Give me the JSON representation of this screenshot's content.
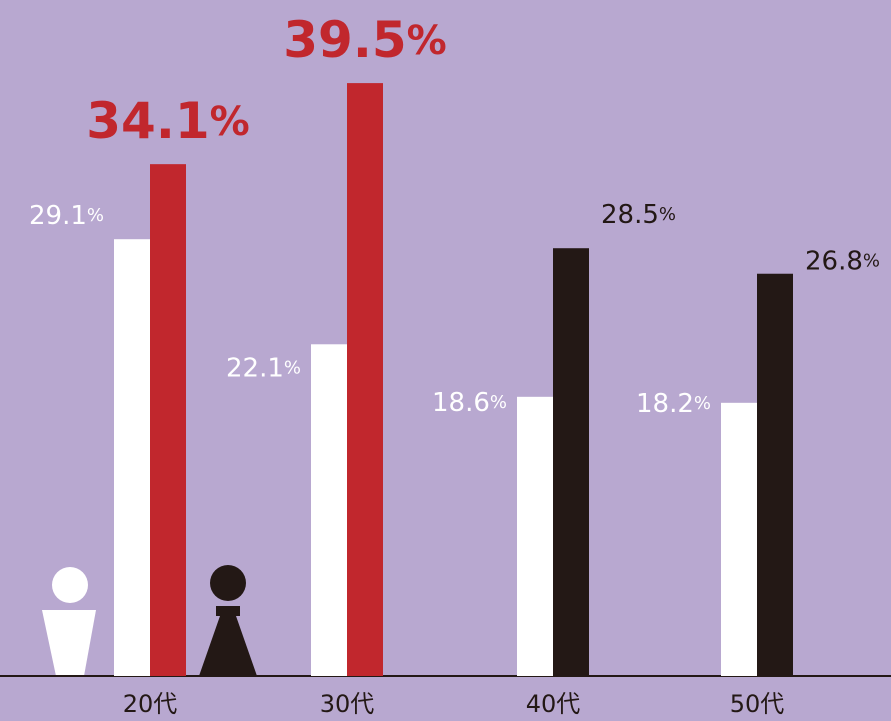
{
  "chart_data": {
    "type": "bar",
    "categories": [
      "20代",
      "30代",
      "40代",
      "50代"
    ],
    "series": [
      {
        "color": "#ffffff",
        "values": [
          29.1,
          22.1,
          18.6,
          18.2
        ],
        "value_labels": [
          "29.1%",
          "22.1%",
          "18.6%",
          "18.2%"
        ]
      },
      {
        "colors": [
          "#c1272d",
          "#c1272d",
          "#231815",
          "#231815"
        ],
        "values": [
          34.1,
          39.5,
          28.5,
          26.8
        ],
        "value_labels": [
          "34.1%",
          "39.5%",
          "28.5%",
          "26.8%"
        ]
      }
    ]
  }
}
